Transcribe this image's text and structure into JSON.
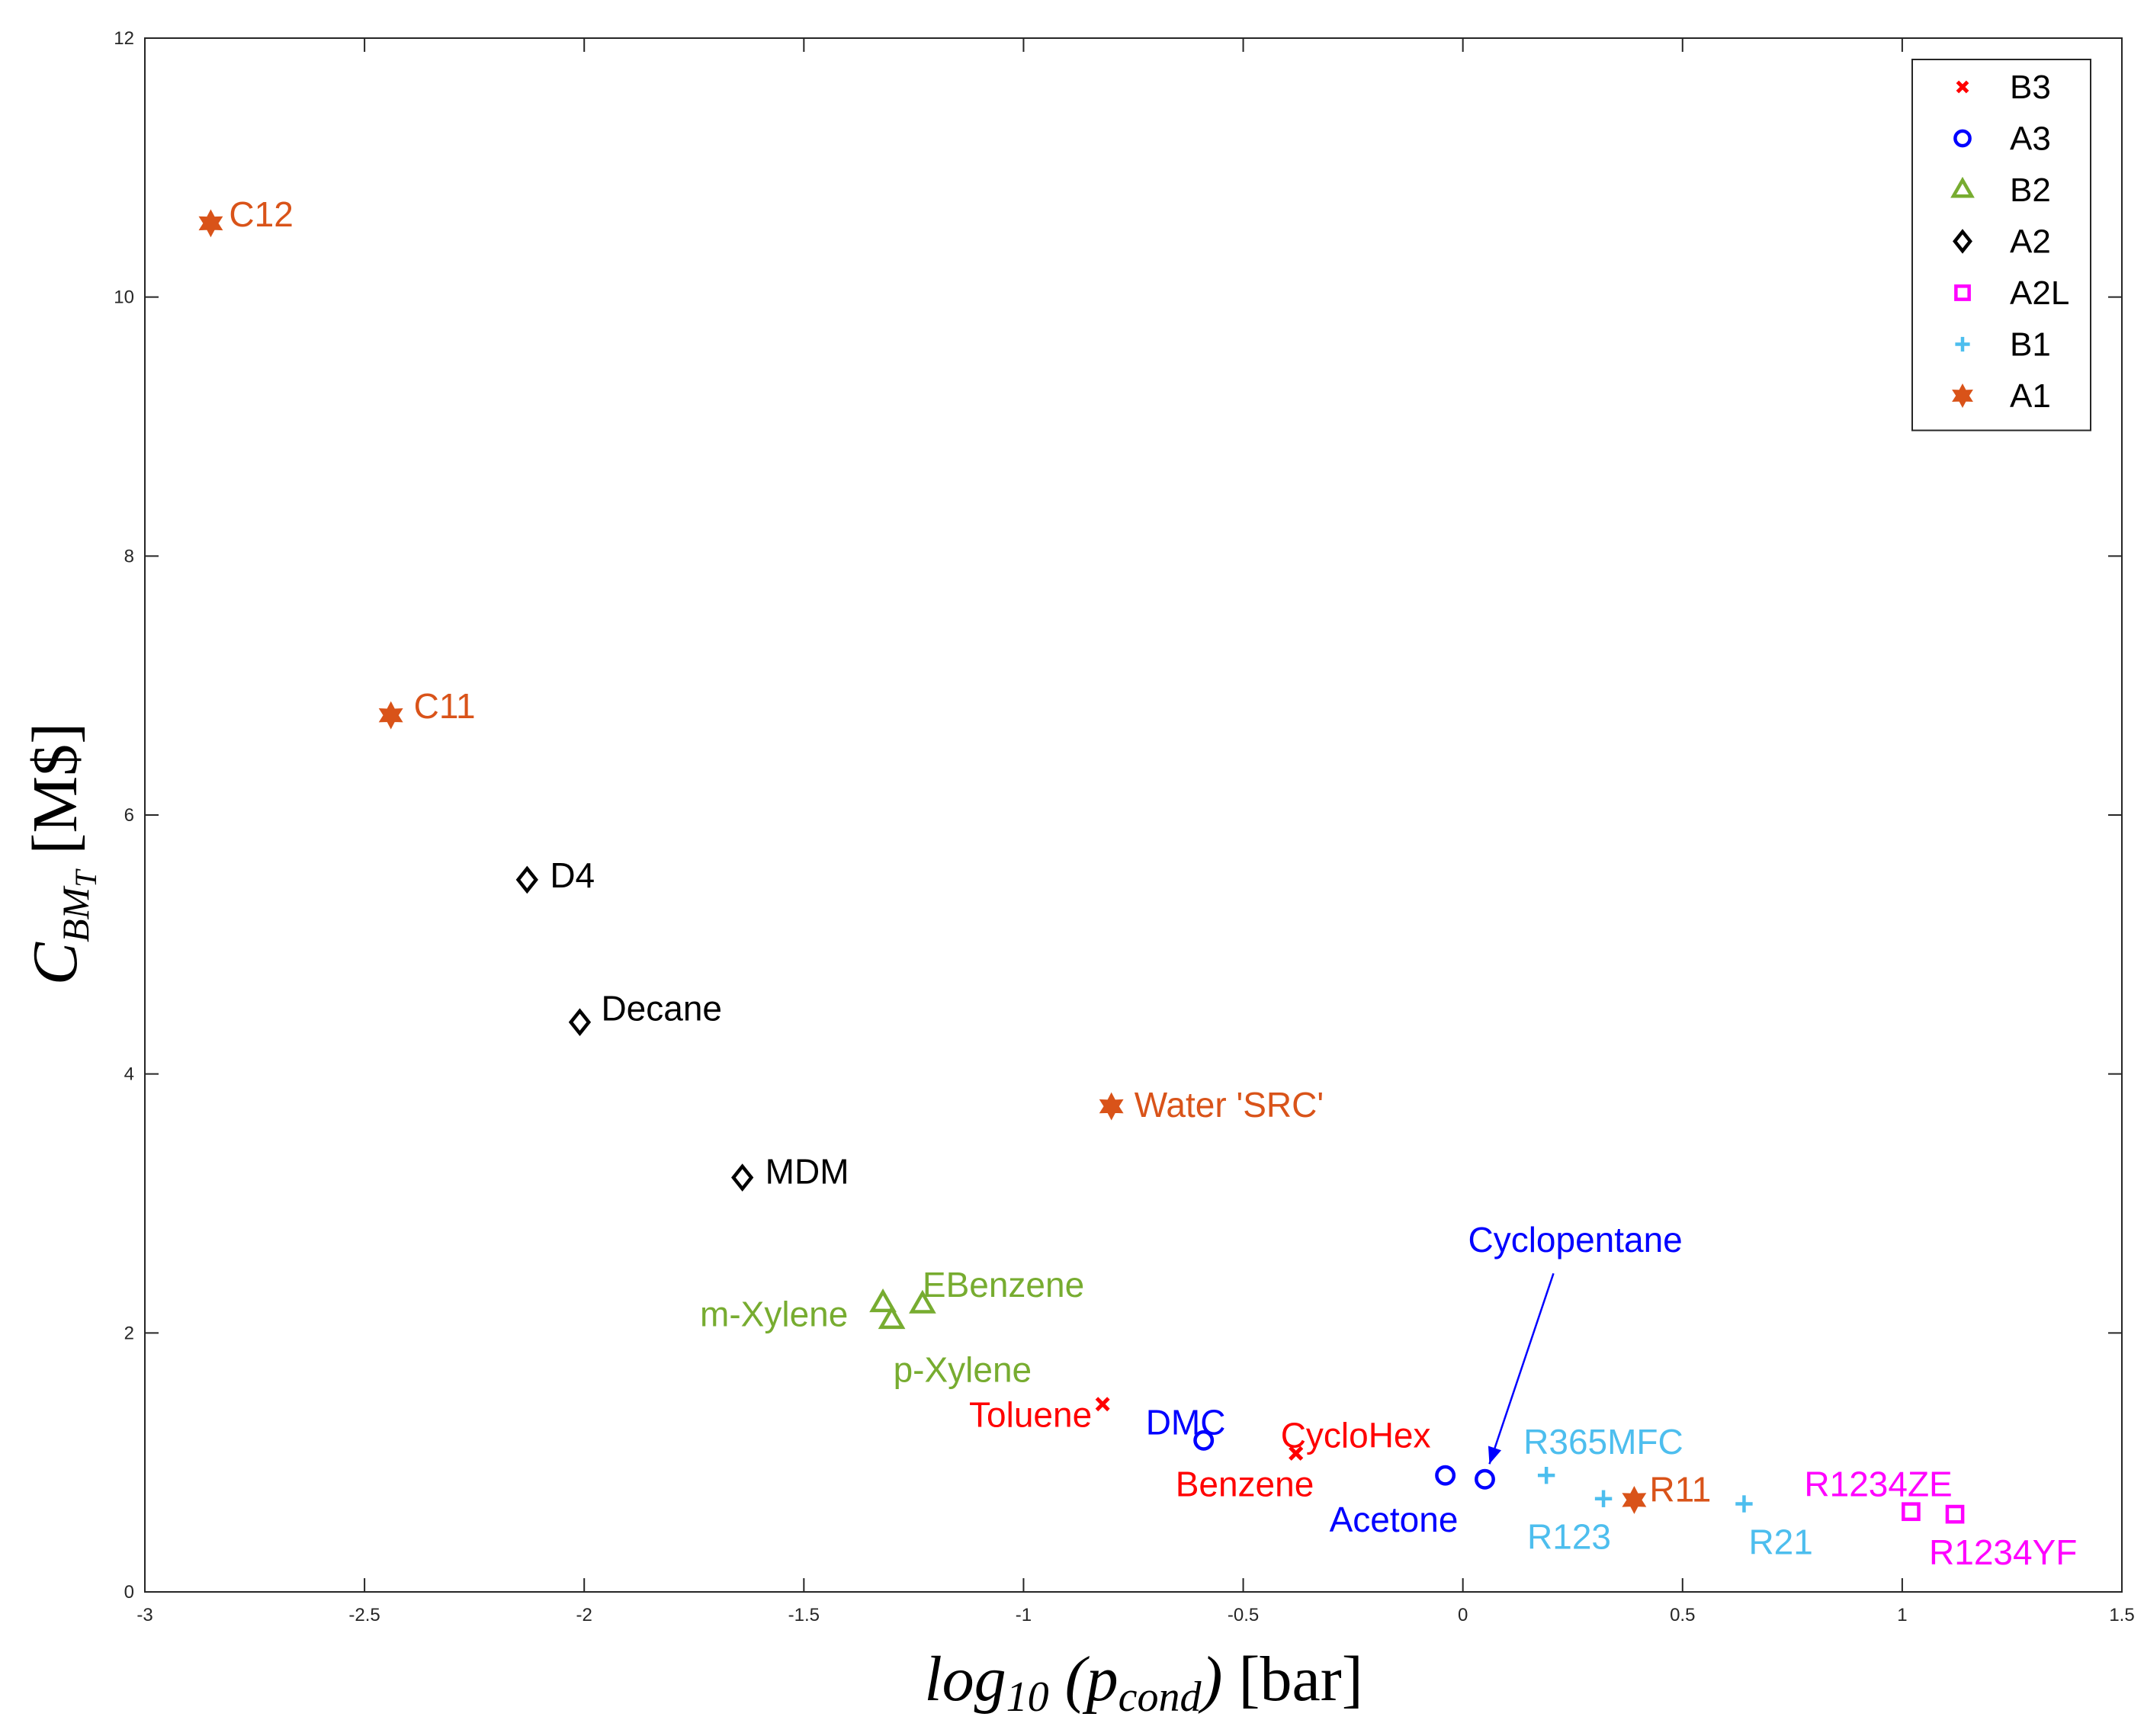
{
  "chart_data": {
    "type": "scatter",
    "xlim": [
      -3,
      1.5
    ],
    "ylim": [
      0,
      12
    ],
    "x_ticks": [
      -3,
      -2.5,
      -2,
      -1.5,
      -1,
      -0.5,
      0,
      0.5,
      1,
      1.5
    ],
    "y_ticks": [
      0,
      2,
      4,
      6,
      8,
      10,
      12
    ],
    "x_tick_labels": [
      "-3",
      "-2.5",
      "-2",
      "-1.5",
      "-1",
      "-0.5",
      "0",
      "0.5",
      "1",
      "1.5"
    ],
    "y_tick_labels": [
      "0",
      "2",
      "4",
      "6",
      "8",
      "10",
      "12"
    ],
    "xlabel": {
      "main": "log",
      "sub": "10",
      "open": " (p",
      "sub2": "cond",
      "close": ")",
      "unit": " [bar]"
    },
    "ylabel": {
      "main": "C",
      "sub": "BM",
      "subsub": "T",
      "unit": " [M$]"
    },
    "grid": false,
    "legend_position": "top-right",
    "series": [
      {
        "name": "B3",
        "color": "#ff0000",
        "marker": "x",
        "points": [
          {
            "x": -0.82,
            "y": 1.45,
            "label": "Toluene"
          },
          {
            "x": -0.38,
            "y": 1.07,
            "label": "CycloHex"
          },
          {
            "x": -0.38,
            "y": 1.07,
            "label": "Benzene"
          }
        ]
      },
      {
        "name": "A3",
        "color": "#0000ff",
        "marker": "circle",
        "points": [
          {
            "x": -0.59,
            "y": 1.17,
            "label": "DMC"
          },
          {
            "x": -0.04,
            "y": 0.9,
            "label": "Acetone"
          },
          {
            "x": 0.05,
            "y": 0.87,
            "label": "Cyclopentane"
          }
        ]
      },
      {
        "name": "B2",
        "color": "#77ac30",
        "marker": "triangle",
        "points": [
          {
            "x": -1.32,
            "y": 2.23,
            "label": "m-Xylene"
          },
          {
            "x": -1.3,
            "y": 2.1,
            "label": "p-Xylene"
          },
          {
            "x": -1.23,
            "y": 2.22,
            "label": "EBenzene"
          }
        ]
      },
      {
        "name": "A2",
        "color": "#000000",
        "marker": "diamond",
        "points": [
          {
            "x": -2.13,
            "y": 5.5,
            "label": "D4"
          },
          {
            "x": -2.01,
            "y": 4.4,
            "label": "Decane"
          },
          {
            "x": -1.64,
            "y": 3.2,
            "label": "MDM"
          }
        ]
      },
      {
        "name": "A2L",
        "color": "#ff00ff",
        "marker": "square",
        "points": [
          {
            "x": 1.02,
            "y": 0.62,
            "label": "R1234ZE"
          },
          {
            "x": 1.12,
            "y": 0.6,
            "label": "R1234YF"
          }
        ]
      },
      {
        "name": "B1",
        "color": "#4dbeee",
        "marker": "plus",
        "points": [
          {
            "x": 0.19,
            "y": 0.9,
            "label": "R365MFC"
          },
          {
            "x": 0.32,
            "y": 0.72,
            "label": "R123"
          },
          {
            "x": 0.64,
            "y": 0.68,
            "label": "R21"
          }
        ]
      },
      {
        "name": "A1",
        "color": "#d95319",
        "marker": "hexagram",
        "points": [
          {
            "x": -2.85,
            "y": 10.57,
            "label": "C12"
          },
          {
            "x": -2.44,
            "y": 6.77,
            "label": "C11"
          },
          {
            "x": -0.8,
            "y": 3.75,
            "label": "Water 'SRC'"
          },
          {
            "x": 0.39,
            "y": 0.71,
            "label": "R11"
          }
        ]
      }
    ]
  }
}
